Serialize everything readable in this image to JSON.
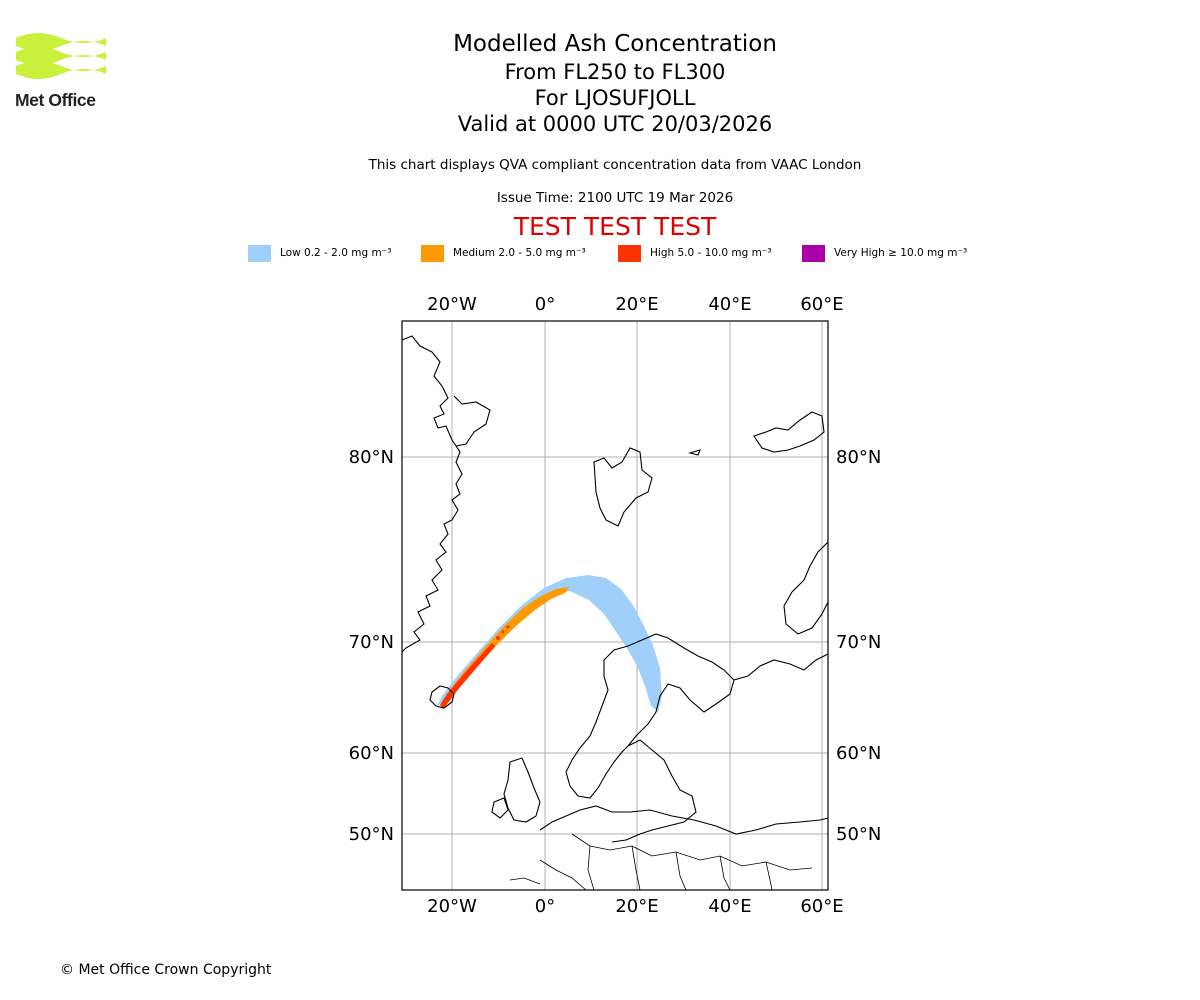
{
  "logo": {
    "text": "Met Office",
    "color": "#c8f03c"
  },
  "header": {
    "title": "Modelled Ash Concentration",
    "level_range": "From FL250 to FL300",
    "location": "For LJOSUFJOLL",
    "valid_time": "Valid at 0000 UTC 20/03/2026",
    "description": "This chart displays QVA compliant concentration data from VAAC London",
    "issue_time": "Issue Time: 2100 UTC 19 Mar 2026",
    "test_banner": "TEST TEST TEST",
    "test_banner_color": "#dd0000"
  },
  "legend": [
    {
      "label": "Low 0.2 - 2.0 mg m⁻³",
      "color": "#a0d0fa"
    },
    {
      "label": "Medium 2.0 - 5.0 mg m⁻³",
      "color": "#ff9900"
    },
    {
      "label": "High 5.0 - 10.0 mg m⁻³",
      "color": "#ff3300"
    },
    {
      "label": "Very High ≥ 10.0 mg m⁻³",
      "color": "#aa00aa"
    }
  ],
  "map": {
    "projection": "polar-stereographic",
    "gridlines": true,
    "lon_labels": [
      "20°W",
      "0°",
      "20°E",
      "40°E",
      "60°E"
    ],
    "lat_labels": [
      "80°N",
      "70°N",
      "60°N",
      "50°N"
    ],
    "lon_values": [
      -20,
      0,
      20,
      40,
      60
    ],
    "lat_values": [
      80,
      70,
      60,
      50
    ],
    "ash_plume": {
      "source": "LJOSUFJOLL",
      "levels_present": [
        "low",
        "medium",
        "high"
      ]
    }
  },
  "footer": {
    "copyright": "© Met Office Crown Copyright"
  }
}
